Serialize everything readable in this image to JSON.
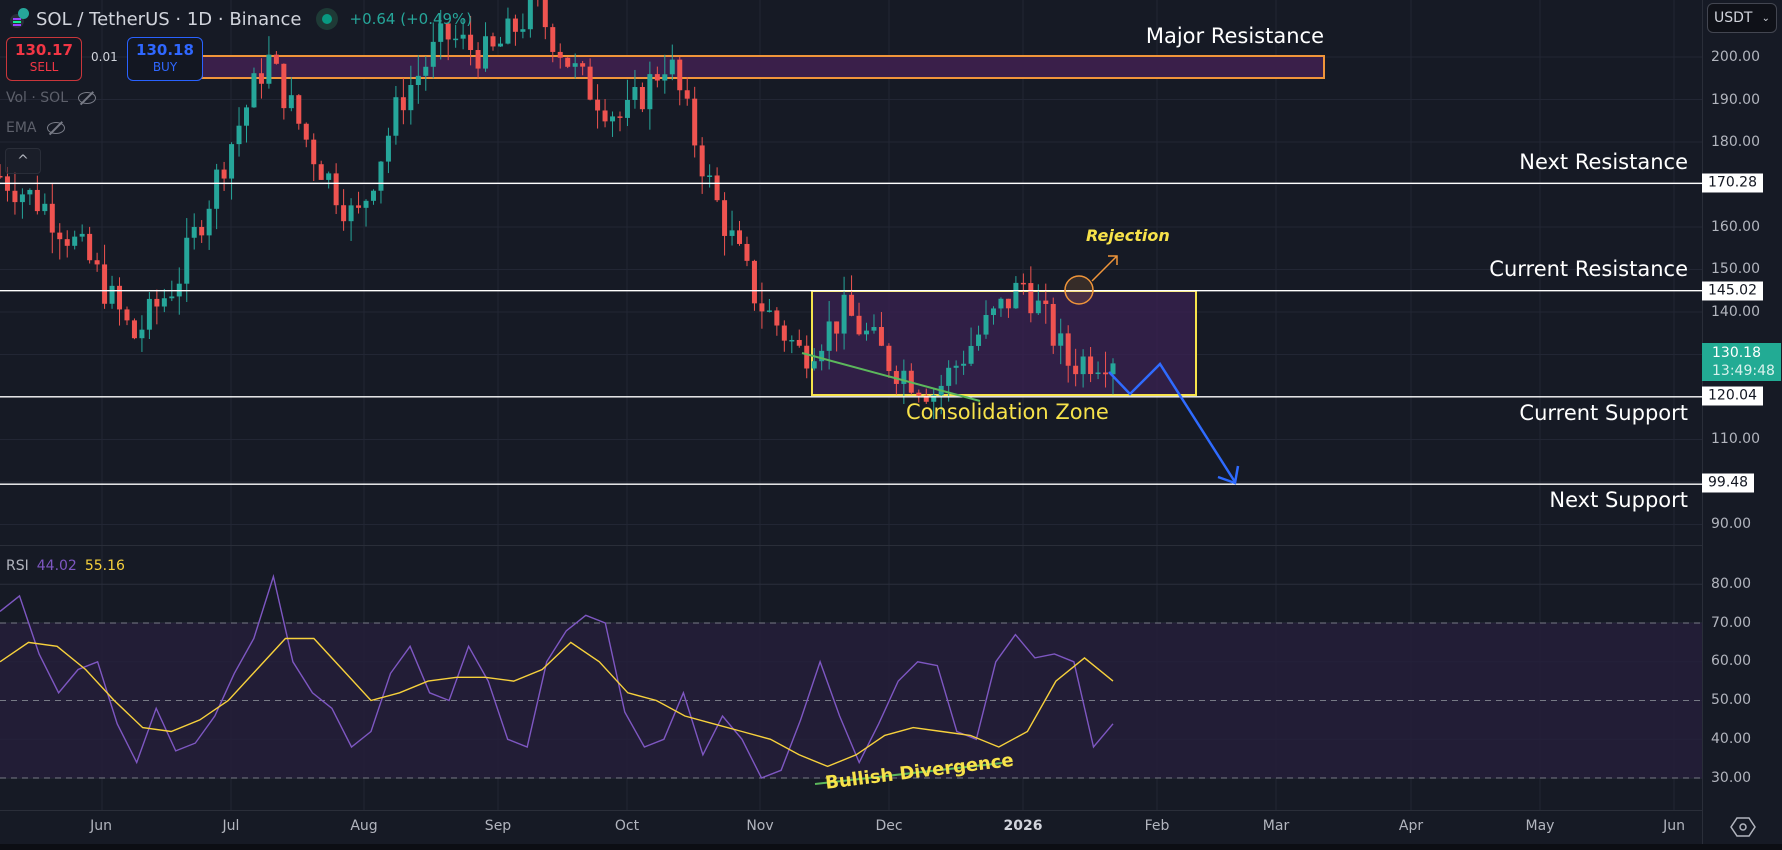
{
  "header": {
    "symbol": "SOL / TetherUS · 1D · Binance",
    "change": "+0.64 (+0.49%)",
    "sell": {
      "price": "130.17",
      "label": "SELL"
    },
    "buy": {
      "price": "130.18",
      "label": "BUY"
    },
    "spread": "0.01"
  },
  "indicators": [
    {
      "label": "Vol · SOL",
      "icon": "eye-off-icon"
    },
    {
      "label": "EMA",
      "icon": "eye-off-icon"
    }
  ],
  "collapse_icon": "^",
  "price_axis": {
    "currency": "USDT",
    "ticks": [
      "200.00",
      "190.00",
      "180.00",
      "160.00",
      "150.00",
      "140.00",
      "110.00",
      "90.00"
    ],
    "tick_values": [
      200,
      190,
      180,
      160,
      150,
      140,
      110,
      90
    ],
    "current_price": "130.18",
    "countdown": "13:49:48"
  },
  "rsi_axis": {
    "ticks": [
      "80.00",
      "70.00",
      "60.00",
      "50.00",
      "40.00",
      "30.00"
    ],
    "tick_values": [
      80,
      70,
      60,
      50,
      40,
      30
    ]
  },
  "levels": [
    {
      "name": "Next Resistance",
      "value": "170.28",
      "price": 170.28
    },
    {
      "name": "Current Resistance",
      "value": "145.02",
      "price": 145.02
    },
    {
      "name": "Current Support",
      "value": "120.04",
      "price": 120.04
    },
    {
      "name": "Next Support",
      "value": "99.48",
      "price": 99.48
    }
  ],
  "annotations": {
    "major_resistance": "Major Resistance",
    "consolidation": "Consolidation Zone",
    "rejection": "Rejection",
    "bullish_divergence": "Bullish Divergence"
  },
  "rsi_legend": {
    "label": "RSI",
    "rsi": "44.02",
    "ma": "55.16"
  },
  "time_axis": [
    "Jun",
    "Jul",
    "Aug",
    "Sep",
    "Oct",
    "Nov",
    "Dec",
    "2026",
    "Feb",
    "Mar",
    "Apr",
    "May",
    "Jun"
  ],
  "colors": {
    "up": "#26a69a",
    "down": "#ef5350",
    "zone": "#f7e24a",
    "major": "#f0953a",
    "rsi": "#7e57c2",
    "rsi_ma": "#f7d13c",
    "projection": "#2f6bff",
    "trend": "#5cb85c"
  },
  "chart_data": [
    {
      "type": "candlestick",
      "title": "SOL / TetherUS · 1D · Binance",
      "ylabel": "USDT",
      "ylim": [
        85,
        213
      ],
      "x": [
        "Jun",
        "Jul",
        "Aug",
        "Sep",
        "Oct",
        "Nov",
        "Dec",
        "2026",
        "Feb",
        "Mar",
        "Apr",
        "May",
        "Jun"
      ],
      "approx_close_path": [
        [
          "May-late",
          172
        ],
        [
          "Jun-early",
          165
        ],
        [
          "Jun-mid",
          152
        ],
        [
          "Jun-late",
          134
        ],
        [
          "Jul-early",
          148
        ],
        [
          "Jul-mid",
          175
        ],
        [
          "Jul-late",
          200
        ],
        [
          "Aug-early",
          178
        ],
        [
          "Aug-mid",
          161
        ],
        [
          "Aug-late",
          190
        ],
        [
          "Sep-early",
          205
        ],
        [
          "Sep-mid",
          200
        ],
        [
          "Sep-late",
          212
        ],
        [
          "Oct-early",
          195
        ],
        [
          "Oct-mid",
          185
        ],
        [
          "Oct-late",
          200
        ],
        [
          "Nov-early",
          168
        ],
        [
          "Nov-mid",
          143
        ],
        [
          "Nov-late",
          130
        ],
        [
          "Dec-early",
          140
        ],
        [
          "Dec-mid",
          128
        ],
        [
          "Dec-late",
          121
        ],
        [
          "Jan-early",
          135
        ],
        [
          "Jan-mid",
          147
        ],
        [
          "Jan-late",
          128
        ],
        [
          "Jan-now",
          130.18
        ]
      ],
      "horizontal_levels": [
        170.28,
        145.02,
        120.04,
        99.48
      ],
      "zones": [
        {
          "label": "Major Resistance",
          "from": 195,
          "to": 200
        },
        {
          "label": "Consolidation Zone",
          "from": 120.04,
          "to": 145.02,
          "start": "Nov-mid",
          "end": "Feb-early"
        }
      ],
      "projection": [
        [
          "Jan-now",
          126
        ],
        [
          "Jan-late",
          120.5
        ],
        [
          "Feb-early",
          127.5
        ],
        [
          "Feb-late",
          99.5
        ]
      ],
      "last_price": 130.18
    },
    {
      "type": "line",
      "title": "RSI",
      "ylim": [
        25,
        88
      ],
      "bands": [
        30,
        50,
        70
      ],
      "series": [
        {
          "name": "RSI",
          "last": 44.02,
          "values": [
            73,
            77,
            62,
            52,
            58,
            60,
            44,
            34,
            48,
            37,
            39,
            46,
            57,
            66,
            82,
            60,
            52,
            48,
            38,
            42,
            57,
            64,
            52,
            50,
            64,
            55,
            40,
            38,
            60,
            68,
            72,
            70,
            47,
            38,
            40,
            52,
            36,
            46,
            40,
            30,
            32,
            45,
            60,
            46,
            34,
            44,
            55,
            60,
            59,
            42,
            40,
            60,
            67,
            61,
            62,
            60,
            38,
            44
          ]
        },
        {
          "name": "RSI MA",
          "last": 55.16,
          "values": [
            60,
            65,
            64,
            58,
            50,
            43,
            42,
            45,
            50,
            58,
            66,
            66,
            58,
            50,
            52,
            55,
            56,
            56,
            55,
            58,
            65,
            60,
            52,
            50,
            46,
            44,
            42,
            40,
            36,
            33,
            36,
            41,
            43,
            42,
            41,
            38,
            42,
            55,
            61,
            55
          ]
        }
      ],
      "annotations": [
        "Bullish Divergence"
      ]
    }
  ]
}
